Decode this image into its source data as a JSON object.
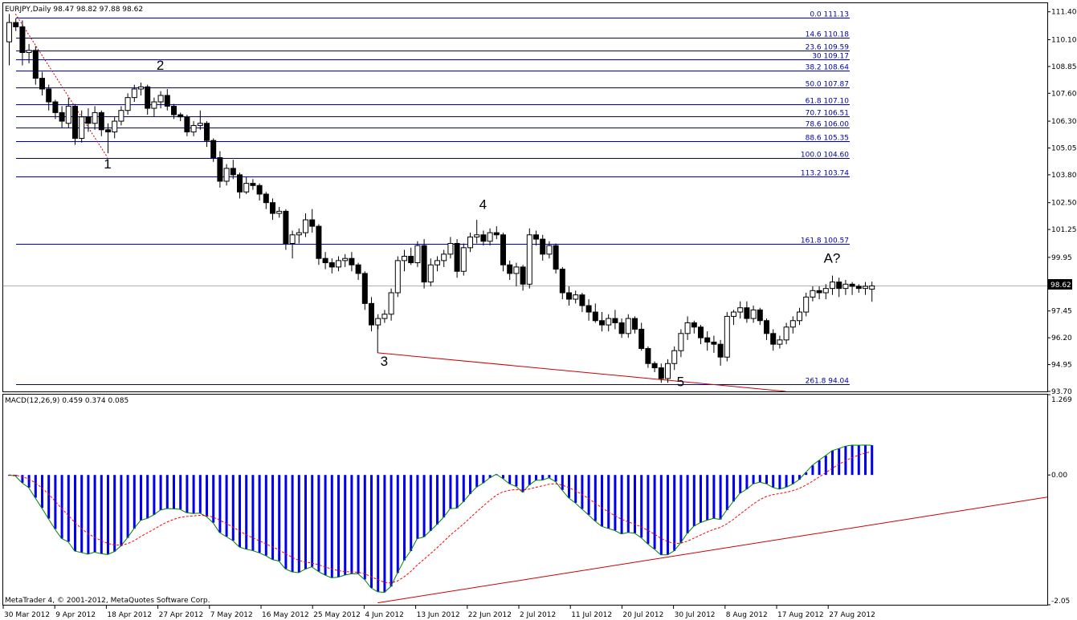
{
  "price_panel": {
    "header": "EURJPY,Daily  98.47 98.82 97.88 98.62",
    "current_price": 98.62,
    "current_price_label": "98.62"
  },
  "macd_panel": {
    "header": "MACD(12,26,9) 0.459 0.374 0.085"
  },
  "footer": "MetaTrader 4, © 2001-2012, MetaQuotes Software Corp.",
  "colors": {
    "bull_body": "#ffffff",
    "bear_body": "#000000",
    "fib_line": "#0000aa",
    "trend_line": "#cc0000",
    "macd_hist": "#0000ee",
    "macd_line": "#008000",
    "signal_line": "#ff0000"
  },
  "chart_data": [
    {
      "type": "candlestick",
      "title": "EURJPY,Daily",
      "ylim": [
        93.7,
        111.8
      ],
      "yticks": [
        "111.40",
        "110.10",
        "108.85",
        "107.60",
        "106.30",
        "105.05",
        "103.80",
        "102.50",
        "101.25",
        "99.95",
        "98.62",
        "97.45",
        "96.20",
        "94.95",
        "93.70"
      ],
      "xticks": [
        "30 Mar 2012",
        "9 Apr 2012",
        "18 Apr 2012",
        "27 Apr 2012",
        "7 May 2012",
        "16 May 2012",
        "25 May 2012",
        "4 Jun 2012",
        "13 Jun 2012",
        "22 Jun 2012",
        "2 Jul 2012",
        "11 Jul 2012",
        "20 Jul 2012",
        "30 Jul 2012",
        "8 Aug 2012",
        "17 Aug 2012",
        "27 Aug 2012"
      ],
      "fib_levels": [
        {
          "label": "0.0 111.13",
          "price": 111.13
        },
        {
          "label": "14.6 110.18",
          "price": 110.18
        },
        {
          "label": "23.6 109.59",
          "price": 109.59
        },
        {
          "label": "30 109.17",
          "price": 109.17
        },
        {
          "label": "38.2 108.64",
          "price": 108.64
        },
        {
          "label": "50.0 107.87",
          "price": 107.87
        },
        {
          "label": "61.8 107.10",
          "price": 107.1
        },
        {
          "label": "70.7 106.51",
          "price": 106.51
        },
        {
          "label": "78.6 106.00",
          "price": 106.0
        },
        {
          "label": "88.6 105.35",
          "price": 105.35
        },
        {
          "label": "100.0 104.60",
          "price": 104.6
        },
        {
          "label": "113.2 103.74",
          "price": 103.74
        },
        {
          "label": "161.8 100.57",
          "price": 100.57
        },
        {
          "label": "261.8 94.04",
          "price": 94.04
        }
      ],
      "wave_labels": [
        {
          "text": "1",
          "bar": 15,
          "price": 104.1
        },
        {
          "text": "2",
          "bar": 23,
          "price": 108.7
        },
        {
          "text": "3",
          "bar": 57,
          "price": 94.9
        },
        {
          "text": "4",
          "bar": 72,
          "price": 102.2
        },
        {
          "text": "5",
          "bar": 102,
          "price": 93.95
        },
        {
          "text": "A?",
          "bar": 125,
          "price": 99.7
        }
      ],
      "candles": [
        [
          110.0,
          111.3,
          108.9,
          110.9
        ],
        [
          110.9,
          111.1,
          110.5,
          110.7
        ],
        [
          110.7,
          111.0,
          108.9,
          109.5
        ],
        [
          109.5,
          109.9,
          109.0,
          109.6
        ],
        [
          109.6,
          109.8,
          108.0,
          108.3
        ],
        [
          108.3,
          108.6,
          107.5,
          107.8
        ],
        [
          107.8,
          108.0,
          106.8,
          107.2
        ],
        [
          107.2,
          107.3,
          106.4,
          106.7
        ],
        [
          106.7,
          107.0,
          106.0,
          106.3
        ],
        [
          106.2,
          107.4,
          106.0,
          107.0
        ],
        [
          107.0,
          107.1,
          105.2,
          105.5
        ],
        [
          105.5,
          106.8,
          105.3,
          106.5
        ],
        [
          106.5,
          106.9,
          105.8,
          106.2
        ],
        [
          106.2,
          107.0,
          105.9,
          106.7
        ],
        [
          106.7,
          106.8,
          105.6,
          105.9
        ],
        [
          105.9,
          106.2,
          104.8,
          105.8
        ],
        [
          105.8,
          106.5,
          105.5,
          106.3
        ],
        [
          106.3,
          107.0,
          106.1,
          106.8
        ],
        [
          106.8,
          107.6,
          106.6,
          107.4
        ],
        [
          107.4,
          108.0,
          107.2,
          107.8
        ],
        [
          107.8,
          108.1,
          107.5,
          107.9
        ],
        [
          107.9,
          108.0,
          106.6,
          106.9
        ],
        [
          106.9,
          107.4,
          106.5,
          107.2
        ],
        [
          107.2,
          107.7,
          106.9,
          107.5
        ],
        [
          107.5,
          107.8,
          106.8,
          107.0
        ],
        [
          107.0,
          107.1,
          106.4,
          106.6
        ],
        [
          106.6,
          106.7,
          106.3,
          106.5
        ],
        [
          106.5,
          106.6,
          105.6,
          105.8
        ],
        [
          105.8,
          106.3,
          105.6,
          106.1
        ],
        [
          106.1,
          106.8,
          105.9,
          106.2
        ],
        [
          106.2,
          106.3,
          105.1,
          105.4
        ],
        [
          105.4,
          105.5,
          104.4,
          104.6
        ],
        [
          104.6,
          104.9,
          103.2,
          103.5
        ],
        [
          103.5,
          104.3,
          103.3,
          104.1
        ],
        [
          104.1,
          104.5,
          103.6,
          103.8
        ],
        [
          103.8,
          103.9,
          102.7,
          103.0
        ],
        [
          103.0,
          103.7,
          102.9,
          103.4
        ],
        [
          103.4,
          103.6,
          103.1,
          103.3
        ],
        [
          103.3,
          103.4,
          102.6,
          102.9
        ],
        [
          102.9,
          103.0,
          102.2,
          102.5
        ],
        [
          102.5,
          102.7,
          101.7,
          102.0
        ],
        [
          102.0,
          102.3,
          101.8,
          102.1
        ],
        [
          102.1,
          102.2,
          100.3,
          100.6
        ],
        [
          100.6,
          101.2,
          99.9,
          101.0
        ],
        [
          101.0,
          101.3,
          100.6,
          101.1
        ],
        [
          101.1,
          102.0,
          100.9,
          101.7
        ],
        [
          101.7,
          102.2,
          101.1,
          101.4
        ],
        [
          101.4,
          101.5,
          99.6,
          99.9
        ],
        [
          99.9,
          100.2,
          99.4,
          99.7
        ],
        [
          99.7,
          99.9,
          99.2,
          99.5
        ],
        [
          99.5,
          100.0,
          99.3,
          99.8
        ],
        [
          99.8,
          100.1,
          99.5,
          99.9
        ],
        [
          99.9,
          100.2,
          99.3,
          99.6
        ],
        [
          99.6,
          99.7,
          98.9,
          99.2
        ],
        [
          99.2,
          99.3,
          97.5,
          97.8
        ],
        [
          97.8,
          98.1,
          96.5,
          96.8
        ],
        [
          96.8,
          97.3,
          96.6,
          97.1
        ],
        [
          97.1,
          97.5,
          96.9,
          97.3
        ],
        [
          97.3,
          98.5,
          97.0,
          98.3
        ],
        [
          98.3,
          100.0,
          98.1,
          99.8
        ],
        [
          99.8,
          100.3,
          99.3,
          100.0
        ],
        [
          100.0,
          100.4,
          99.6,
          99.7
        ],
        [
          99.7,
          100.7,
          99.5,
          100.5
        ],
        [
          100.5,
          100.8,
          98.5,
          98.8
        ],
        [
          98.8,
          99.9,
          98.6,
          99.6
        ],
        [
          99.6,
          100.0,
          99.3,
          99.8
        ],
        [
          99.8,
          100.3,
          99.5,
          100.1
        ],
        [
          100.1,
          100.9,
          99.9,
          100.6
        ],
        [
          100.6,
          100.8,
          99.0,
          99.3
        ],
        [
          99.3,
          100.6,
          99.1,
          100.4
        ],
        [
          100.4,
          101.1,
          100.2,
          100.9
        ],
        [
          100.9,
          101.7,
          100.6,
          101.0
        ],
        [
          101.0,
          101.2,
          100.5,
          100.7
        ],
        [
          100.7,
          101.3,
          100.5,
          101.1
        ],
        [
          101.1,
          101.4,
          100.8,
          101.0
        ],
        [
          101.0,
          101.1,
          99.3,
          99.6
        ],
        [
          99.6,
          99.8,
          98.9,
          99.2
        ],
        [
          99.2,
          99.7,
          98.6,
          99.5
        ],
        [
          99.5,
          99.6,
          98.4,
          98.7
        ],
        [
          98.7,
          101.3,
          98.5,
          101.0
        ],
        [
          101.0,
          101.2,
          100.5,
          100.8
        ],
        [
          100.8,
          101.0,
          99.8,
          100.1
        ],
        [
          100.1,
          100.7,
          99.9,
          100.5
        ],
        [
          100.5,
          100.6,
          99.2,
          99.4
        ],
        [
          99.4,
          99.5,
          98.0,
          98.3
        ],
        [
          98.3,
          98.6,
          97.7,
          98.0
        ],
        [
          98.0,
          98.4,
          97.8,
          98.2
        ],
        [
          98.2,
          98.3,
          97.4,
          97.7
        ],
        [
          97.7,
          98.0,
          97.0,
          97.4
        ],
        [
          97.4,
          97.8,
          96.9,
          97.0
        ],
        [
          97.0,
          97.4,
          96.5,
          96.8
        ],
        [
          96.8,
          97.3,
          96.5,
          97.1
        ],
        [
          97.1,
          97.5,
          96.6,
          96.9
        ],
        [
          96.9,
          97.1,
          96.2,
          96.4
        ],
        [
          96.4,
          97.3,
          96.2,
          97.1
        ],
        [
          97.1,
          97.2,
          96.4,
          96.6
        ],
        [
          96.6,
          96.9,
          95.6,
          95.7
        ],
        [
          95.7,
          95.8,
          94.8,
          95.0
        ],
        [
          95.0,
          95.1,
          94.6,
          94.8
        ],
        [
          94.8,
          95.0,
          94.1,
          94.3
        ],
        [
          94.3,
          95.2,
          94.1,
          95.0
        ],
        [
          95.0,
          95.8,
          94.7,
          95.6
        ],
        [
          95.6,
          96.6,
          95.3,
          96.4
        ],
        [
          96.4,
          97.2,
          96.1,
          96.9
        ],
        [
          96.9,
          97.0,
          96.4,
          96.7
        ],
        [
          96.7,
          96.8,
          95.9,
          96.2
        ],
        [
          96.2,
          96.5,
          95.6,
          96.0
        ],
        [
          96.0,
          96.3,
          95.5,
          95.9
        ],
        [
          95.9,
          96.1,
          94.9,
          95.3
        ],
        [
          95.3,
          97.4,
          95.1,
          97.2
        ],
        [
          97.2,
          97.5,
          96.8,
          97.4
        ],
        [
          97.4,
          97.9,
          97.1,
          97.6
        ],
        [
          97.6,
          97.9,
          96.9,
          97.1
        ],
        [
          97.1,
          97.7,
          96.9,
          97.5
        ],
        [
          97.5,
          97.6,
          96.8,
          97.0
        ],
        [
          97.0,
          97.1,
          96.1,
          96.4
        ],
        [
          96.4,
          96.6,
          95.6,
          95.9
        ],
        [
          95.9,
          96.3,
          95.7,
          96.1
        ],
        [
          96.1,
          96.9,
          95.9,
          96.7
        ],
        [
          96.7,
          97.2,
          96.4,
          97.0
        ],
        [
          97.0,
          97.6,
          96.8,
          97.4
        ],
        [
          97.4,
          98.3,
          97.2,
          98.1
        ],
        [
          98.1,
          98.6,
          97.9,
          98.4
        ],
        [
          98.4,
          98.6,
          98.0,
          98.3
        ],
        [
          98.3,
          98.7,
          98.0,
          98.5
        ],
        [
          98.5,
          99.1,
          98.2,
          98.8
        ],
        [
          98.8,
          99.0,
          98.1,
          98.5
        ],
        [
          98.5,
          98.9,
          98.2,
          98.7
        ],
        [
          98.7,
          98.8,
          98.2,
          98.6
        ],
        [
          98.6,
          98.7,
          98.3,
          98.5
        ],
        [
          98.5,
          98.8,
          98.2,
          98.6
        ],
        [
          98.47,
          98.82,
          97.88,
          98.62
        ]
      ],
      "trend_line": {
        "from": {
          "bar": 56,
          "price": 95.5
        },
        "to": {
          "bar": 118,
          "price": 93.7
        }
      }
    },
    {
      "type": "histogram+line",
      "title": "MACD(12,26,9)",
      "ylim": [
        -2.05,
        1.269
      ],
      "yticks": [
        "1.269",
        "0.00",
        "-2.05"
      ],
      "trend_line": {
        "from": {
          "bar": 56,
          "value": -2.02
        },
        "to": {
          "bar": 171,
          "value": -0.35
        }
      }
    }
  ]
}
